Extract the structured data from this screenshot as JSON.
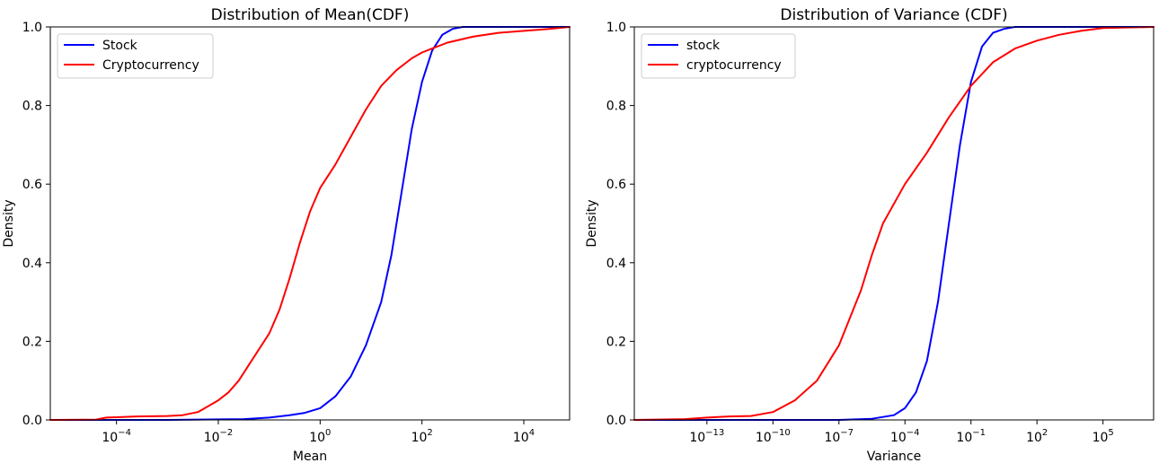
{
  "chart_data": [
    {
      "type": "line",
      "title": "Distribution of Mean(CDF)",
      "xlabel": "Mean",
      "ylabel": "Density",
      "xscale": "log",
      "x_exponent_range": [
        -5.3,
        4.9
      ],
      "ylim": [
        0,
        1
      ],
      "x_tick_exponents": [
        "−4",
        "−2",
        "0",
        "2",
        "4"
      ],
      "y_ticks": [
        "0.0",
        "0.2",
        "0.4",
        "0.6",
        "0.8",
        "1.0"
      ],
      "legend_placement": "top-left",
      "series": [
        {
          "name": "Stock",
          "color": "#0000ff",
          "log10_x": [
            -5.3,
            -3.0,
            -1.5,
            -1.0,
            -0.6,
            -0.3,
            0.0,
            0.3,
            0.6,
            0.9,
            1.2,
            1.4,
            1.6,
            1.8,
            2.0,
            2.2,
            2.4,
            2.6,
            2.8,
            3.2,
            4.9
          ],
          "y": [
            0.0,
            0.0,
            0.002,
            0.006,
            0.012,
            0.018,
            0.03,
            0.06,
            0.11,
            0.19,
            0.3,
            0.42,
            0.58,
            0.74,
            0.86,
            0.94,
            0.98,
            0.995,
            1.0,
            1.0,
            1.0
          ]
        },
        {
          "name": "Cryptocurrency",
          "color": "#ff0000",
          "log10_x": [
            -5.3,
            -4.4,
            -4.2,
            -3.6,
            -3.0,
            -2.7,
            -2.4,
            -2.2,
            -2.0,
            -1.8,
            -1.6,
            -1.4,
            -1.2,
            -1.0,
            -0.8,
            -0.6,
            -0.4,
            -0.2,
            0.0,
            0.3,
            0.6,
            0.9,
            1.2,
            1.5,
            1.8,
            2.0,
            2.2,
            2.5,
            3.0,
            3.5,
            4.0,
            4.5,
            4.9
          ],
          "y": [
            0.0,
            0.001,
            0.006,
            0.009,
            0.01,
            0.012,
            0.02,
            0.035,
            0.05,
            0.07,
            0.1,
            0.14,
            0.18,
            0.22,
            0.28,
            0.36,
            0.45,
            0.53,
            0.59,
            0.65,
            0.72,
            0.79,
            0.85,
            0.89,
            0.92,
            0.935,
            0.945,
            0.96,
            0.975,
            0.985,
            0.99,
            0.995,
            1.0
          ]
        }
      ]
    },
    {
      "type": "line",
      "title": "Distribution of Variance (CDF)",
      "xlabel": "Variance",
      "ylabel": "Density",
      "xscale": "log",
      "x_exponent_range": [
        -16.3,
        7.3
      ],
      "ylim": [
        0,
        1
      ],
      "x_tick_exponents": [
        "−13",
        "−10",
        "−7",
        "−4",
        "−1",
        "2",
        "5"
      ],
      "y_ticks": [
        "0.0",
        "0.2",
        "0.4",
        "0.6",
        "0.8",
        "1.0"
      ],
      "legend_placement": "top-left",
      "series": [
        {
          "name": "stock",
          "color": "#0000ff",
          "log10_x": [
            -16.3,
            -7.0,
            -5.5,
            -4.5,
            -4.0,
            -3.5,
            -3.0,
            -2.5,
            -2.0,
            -1.5,
            -1.0,
            -0.5,
            0.0,
            0.5,
            1.0,
            2.0,
            3.0,
            7.3
          ],
          "y": [
            0.0,
            0.0,
            0.003,
            0.012,
            0.03,
            0.07,
            0.15,
            0.3,
            0.5,
            0.7,
            0.86,
            0.95,
            0.985,
            0.995,
            1.0,
            1.0,
            1.0,
            1.0
          ]
        },
        {
          "name": "cryptocurrency",
          "color": "#ff0000",
          "log10_x": [
            -16.3,
            -14.0,
            -13.0,
            -12.0,
            -11.0,
            -10.0,
            -9.0,
            -8.0,
            -7.0,
            -6.0,
            -5.5,
            -5.0,
            -4.0,
            -3.0,
            -2.0,
            -1.0,
            0.0,
            1.0,
            2.0,
            3.0,
            4.0,
            5.0,
            7.3
          ],
          "y": [
            0.0,
            0.002,
            0.006,
            0.009,
            0.01,
            0.02,
            0.05,
            0.1,
            0.19,
            0.33,
            0.42,
            0.5,
            0.6,
            0.68,
            0.77,
            0.85,
            0.91,
            0.945,
            0.965,
            0.98,
            0.99,
            0.997,
            1.0
          ]
        }
      ]
    }
  ]
}
